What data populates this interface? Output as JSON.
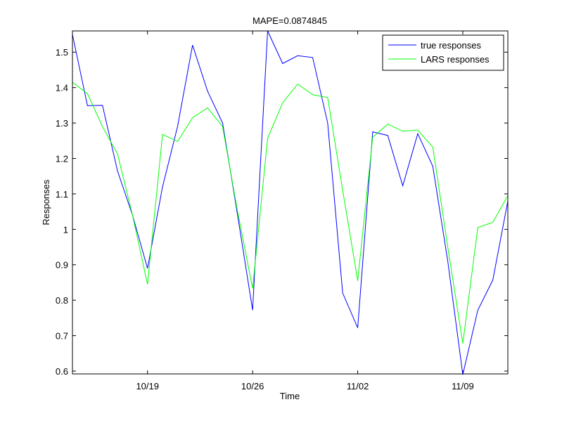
{
  "chart_data": {
    "type": "line",
    "title": "MAPE=0.0874845",
    "x_label": "Time",
    "y_label": "Responses",
    "categories": [
      null,
      null,
      null,
      null,
      null,
      "10/19",
      null,
      null,
      null,
      null,
      null,
      null,
      "10/26",
      null,
      null,
      null,
      null,
      null,
      null,
      "11/02",
      null,
      null,
      null,
      null,
      null,
      null,
      "11/09",
      null,
      null,
      null
    ],
    "series": [
      {
        "name": "true responses",
        "color": "#0000ff",
        "values": [
          1.55,
          1.349,
          1.35,
          1.165,
          1.04,
          0.89,
          1.12,
          1.29,
          1.52,
          1.39,
          1.3,
          1.04,
          0.772,
          1.56,
          1.468,
          1.49,
          1.485,
          1.3,
          0.82,
          0.722,
          1.275,
          1.265,
          1.123,
          1.27,
          1.178,
          0.91,
          0.59,
          0.772,
          0.857,
          1.08
        ]
      },
      {
        "name": "LARS responses",
        "color": "#00ff00",
        "values": [
          1.415,
          1.383,
          1.29,
          1.213,
          1.04,
          0.845,
          1.268,
          1.248,
          1.315,
          1.343,
          1.29,
          1.05,
          0.833,
          1.257,
          1.357,
          1.41,
          1.38,
          1.372,
          1.11,
          0.855,
          1.26,
          1.297,
          1.277,
          1.28,
          1.232,
          0.95,
          0.678,
          1.005,
          1.02,
          1.095
        ]
      }
    ],
    "ylim": [
      0.592,
      1.56
    ],
    "yticks": [
      0.6,
      0.7,
      0.8,
      0.9,
      1,
      1.1,
      1.2,
      1.3,
      1.4,
      1.5
    ],
    "legend": "northeast"
  }
}
